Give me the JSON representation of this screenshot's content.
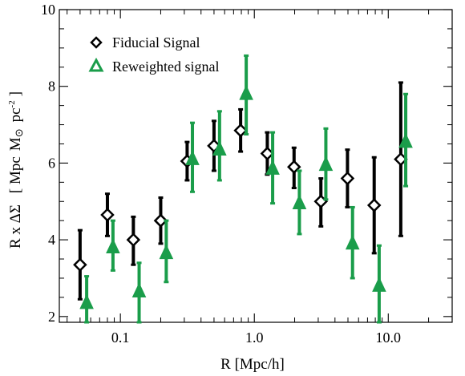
{
  "chart_data": {
    "type": "scatter",
    "xlabel": "R [Mpc/h]",
    "ylabel": {
      "prefix": "R x ΔΣ",
      "open": "[ Mpc",
      "msun": "M",
      "sun_symbol": "⊙",
      "pc": "pc",
      "exp": "-2",
      "close": "]"
    },
    "x_scale": "log",
    "xlim": [
      0.035,
      30
    ],
    "ylim": [
      1.85,
      10
    ],
    "x_ticks": [
      {
        "value": 0.1,
        "label": "0.1"
      },
      {
        "value": 1.0,
        "label": "1.0"
      },
      {
        "value": 10.0,
        "label": "10.0"
      }
    ],
    "y_ticks": [
      {
        "value": 2,
        "label": "2"
      },
      {
        "value": 4,
        "label": "4"
      },
      {
        "value": 6,
        "label": "6"
      },
      {
        "value": 8,
        "label": "8"
      },
      {
        "value": 10,
        "label": "10"
      }
    ],
    "grid": false,
    "legend_position": "top-left",
    "series": [
      {
        "name": "Fiducial Signal",
        "color": "#000000",
        "marker": "diamond",
        "points": [
          {
            "x": 0.05,
            "y": 3.35,
            "ylow": 2.45,
            "yhigh": 4.25
          },
          {
            "x": 0.08,
            "y": 4.65,
            "ylow": 4.1,
            "yhigh": 5.2
          },
          {
            "x": 0.125,
            "y": 4.0,
            "ylow": 3.35,
            "yhigh": 4.6
          },
          {
            "x": 0.2,
            "y": 4.5,
            "ylow": 3.9,
            "yhigh": 5.1
          },
          {
            "x": 0.315,
            "y": 6.05,
            "ylow": 5.55,
            "yhigh": 6.55
          },
          {
            "x": 0.5,
            "y": 6.45,
            "ylow": 5.8,
            "yhigh": 7.1
          },
          {
            "x": 0.79,
            "y": 6.85,
            "ylow": 6.3,
            "yhigh": 7.4
          },
          {
            "x": 1.25,
            "y": 6.25,
            "ylow": 5.7,
            "yhigh": 6.8
          },
          {
            "x": 1.98,
            "y": 5.9,
            "ylow": 5.35,
            "yhigh": 6.4
          },
          {
            "x": 3.14,
            "y": 5.0,
            "ylow": 4.35,
            "yhigh": 5.6
          },
          {
            "x": 4.96,
            "y": 5.6,
            "ylow": 4.85,
            "yhigh": 6.35
          },
          {
            "x": 7.85,
            "y": 4.9,
            "ylow": 3.65,
            "yhigh": 6.15
          },
          {
            "x": 12.4,
            "y": 6.1,
            "ylow": 4.1,
            "yhigh": 8.1
          }
        ]
      },
      {
        "name": "Reweighted signal",
        "color": "#1a9d4a",
        "marker": "triangle",
        "points": [
          {
            "x": 0.056,
            "y": 2.35,
            "ylow": 1.85,
            "yhigh": 3.05
          },
          {
            "x": 0.088,
            "y": 3.8,
            "ylow": 3.2,
            "yhigh": 4.5
          },
          {
            "x": 0.138,
            "y": 2.65,
            "ylow": 1.85,
            "yhigh": 3.4
          },
          {
            "x": 0.22,
            "y": 3.65,
            "ylow": 2.9,
            "yhigh": 4.5
          },
          {
            "x": 0.345,
            "y": 6.1,
            "ylow": 5.25,
            "yhigh": 7.05
          },
          {
            "x": 0.55,
            "y": 6.35,
            "ylow": 5.55,
            "yhigh": 7.35
          },
          {
            "x": 0.87,
            "y": 7.8,
            "ylow": 6.75,
            "yhigh": 8.8
          },
          {
            "x": 1.37,
            "y": 5.85,
            "ylow": 4.95,
            "yhigh": 6.8
          },
          {
            "x": 2.17,
            "y": 4.95,
            "ylow": 4.15,
            "yhigh": 5.8
          },
          {
            "x": 3.42,
            "y": 5.95,
            "ylow": 5.05,
            "yhigh": 6.9
          },
          {
            "x": 5.41,
            "y": 3.9,
            "ylow": 3.0,
            "yhigh": 4.85
          },
          {
            "x": 8.55,
            "y": 2.8,
            "ylow": 1.85,
            "yhigh": 3.85
          },
          {
            "x": 13.5,
            "y": 6.55,
            "ylow": 5.4,
            "yhigh": 7.8
          }
        ]
      }
    ]
  }
}
